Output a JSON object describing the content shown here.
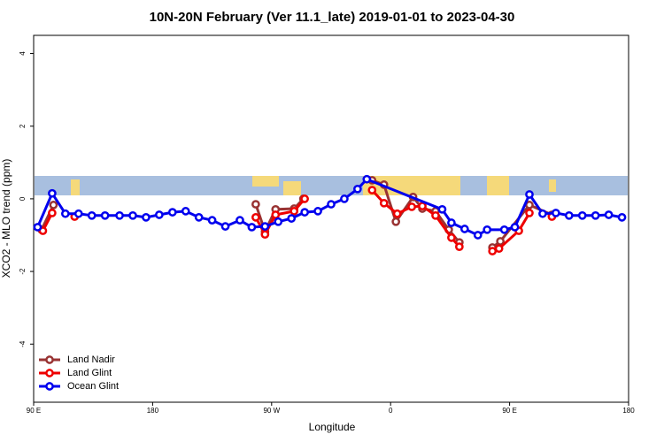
{
  "chart_data": {
    "type": "line",
    "title": "10N-20N February (Ver 11.1_late)   2019-01-01 to 2023-04-30",
    "x_label": "Longitude",
    "y_label": "XCO2 - MLO trend (ppm)",
    "xlim": [
      90,
      540
    ],
    "ylim": [
      -5.6,
      4.5
    ],
    "xticks": [
      {
        "value": 90,
        "label": "90 E"
      },
      {
        "value": 180,
        "label": "180"
      },
      {
        "value": 270,
        "label": "90 W"
      },
      {
        "value": 360,
        "label": "0"
      },
      {
        "value": 450,
        "label": "90 E"
      },
      {
        "value": 540,
        "label": "180"
      }
    ],
    "yticks": [
      -4,
      -2,
      0,
      2,
      4
    ],
    "legend": "bottom-left",
    "series": [
      {
        "name": "Land Nadir",
        "color": "#993333",
        "x": [
          96,
          105,
          null,
          258,
          265,
          273,
          287,
          294,
          null,
          346,
          355,
          364,
          377,
          384,
          394,
          404,
          412,
          null,
          437,
          443,
          465,
          482
        ],
        "values": [
          -0.85,
          -0.17,
          null,
          -0.15,
          -0.9,
          -0.29,
          -0.27,
          0,
          null,
          0.51,
          0.39,
          -0.63,
          0.05,
          -0.27,
          -0.34,
          -0.85,
          -1.2,
          null,
          -1.34,
          -1.17,
          -0.17,
          -0.44
        ]
      },
      {
        "name": "Land Glint",
        "color": "#ee0000",
        "x": [
          97,
          104,
          null,
          121,
          null,
          258,
          265,
          273,
          287,
          295,
          null,
          346,
          355,
          365,
          376,
          384,
          394,
          406,
          412,
          null,
          437,
          442,
          457,
          465,
          null,
          482
        ],
        "values": [
          -0.88,
          -0.39,
          null,
          -0.49,
          null,
          -0.51,
          -0.98,
          -0.44,
          -0.34,
          0,
          null,
          0.24,
          -0.12,
          -0.41,
          -0.22,
          -0.2,
          -0.46,
          -1.07,
          -1.32,
          null,
          -1.44,
          -1.37,
          -0.88,
          -0.39,
          null,
          -0.49
        ]
      },
      {
        "name": "Ocean Glint",
        "color": "#0000ee",
        "x": [
          93,
          104,
          114,
          124,
          134,
          144,
          155,
          165,
          175,
          185,
          195,
          205,
          215,
          225,
          235,
          246,
          255,
          265,
          275,
          285,
          295,
          305,
          315,
          325,
          335,
          342,
          399,
          406,
          416,
          426,
          433,
          446,
          454,
          465,
          475,
          485,
          495,
          505,
          515,
          525,
          535
        ],
        "values": [
          -0.78,
          0.15,
          -0.41,
          -0.41,
          -0.46,
          -0.46,
          -0.46,
          -0.46,
          -0.51,
          -0.44,
          -0.37,
          -0.34,
          -0.51,
          -0.59,
          -0.76,
          -0.59,
          -0.78,
          -0.76,
          -0.63,
          -0.54,
          -0.37,
          -0.34,
          -0.15,
          0,
          0.27,
          0.54,
          -0.29,
          -0.66,
          -0.83,
          -1.0,
          -0.85,
          -0.85,
          -0.78,
          0.12,
          -0.41,
          -0.39,
          -0.46,
          -0.46,
          -0.46,
          -0.44,
          -0.51
        ]
      }
    ]
  }
}
